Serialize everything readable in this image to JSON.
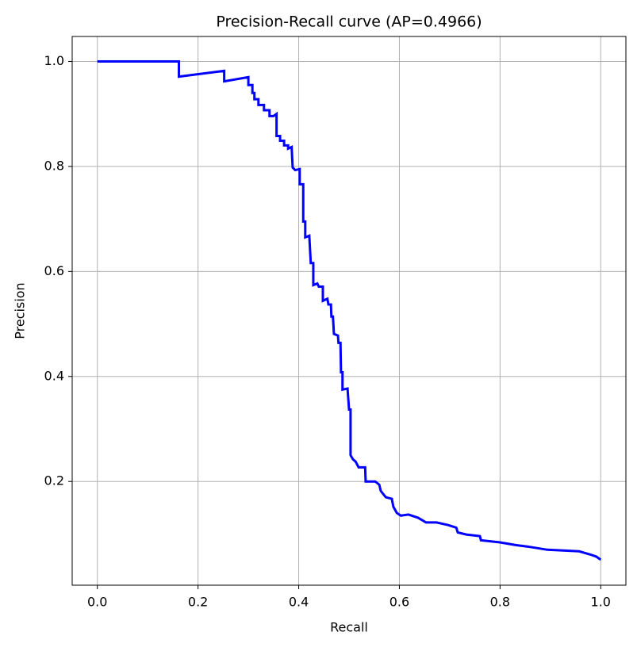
{
  "chart_data": {
    "type": "line",
    "title": "Precision-Recall curve (AP=0.4966)",
    "x_label": "Recall",
    "y_label": "Precision",
    "color": "#0000ff",
    "grid": true,
    "xlim": [
      -0.05,
      1.05
    ],
    "ylim": [
      0.0025,
      1.0475
    ],
    "xticks": [
      {
        "value": 0,
        "label": "0.0"
      },
      0.2,
      0.4,
      0.6,
      0.8,
      {
        "value": 1,
        "label": "1.0"
      }
    ],
    "yticks": [
      0.2,
      0.4,
      0.6,
      0.8,
      {
        "value": 1,
        "label": "1.0"
      }
    ],
    "x": [
      0,
      0.162,
      0.162,
      0.252,
      0.252,
      0.3,
      0.3,
      0.308,
      0.308,
      0.312,
      0.312,
      0.32,
      0.32,
      0.331,
      0.331,
      0.342,
      0.342,
      0.35,
      0.356,
      0.356,
      0.363,
      0.363,
      0.371,
      0.371,
      0.379,
      0.379,
      0.386,
      0.388,
      0.393,
      0.402,
      0.402,
      0.409,
      0.409,
      0.413,
      0.413,
      0.421,
      0.424,
      0.429,
      0.429,
      0.437,
      0.44,
      0.448,
      0.448,
      0.457,
      0.459,
      0.464,
      0.465,
      0.468,
      0.47,
      0.478,
      0.479,
      0.483,
      0.484,
      0.487,
      0.487,
      0.497,
      0.5,
      0.503,
      0.503,
      0.508,
      0.513,
      0.519,
      0.532,
      0.533,
      0.552,
      0.56,
      0.563,
      0.573,
      0.585,
      0.588,
      0.595,
      0.603,
      0.618,
      0.637,
      0.653,
      0.674,
      0.697,
      0.713,
      0.716,
      0.733,
      0.76,
      0.762,
      0.8,
      0.831,
      0.855,
      0.894,
      0.957,
      0.979,
      0.991,
      1.0
    ],
    "values": [
      1.0,
      1.0,
      0.971,
      0.982,
      0.962,
      0.97,
      0.955,
      0.955,
      0.94,
      0.94,
      0.928,
      0.928,
      0.917,
      0.917,
      0.907,
      0.907,
      0.896,
      0.896,
      0.9,
      0.858,
      0.858,
      0.849,
      0.849,
      0.84,
      0.84,
      0.834,
      0.837,
      0.798,
      0.793,
      0.795,
      0.766,
      0.766,
      0.695,
      0.695,
      0.665,
      0.668,
      0.616,
      0.616,
      0.574,
      0.577,
      0.571,
      0.571,
      0.544,
      0.548,
      0.537,
      0.537,
      0.514,
      0.514,
      0.481,
      0.478,
      0.464,
      0.464,
      0.408,
      0.408,
      0.375,
      0.377,
      0.337,
      0.337,
      0.25,
      0.242,
      0.238,
      0.227,
      0.227,
      0.2,
      0.2,
      0.194,
      0.182,
      0.17,
      0.167,
      0.152,
      0.14,
      0.135,
      0.137,
      0.131,
      0.122,
      0.122,
      0.117,
      0.112,
      0.103,
      0.099,
      0.096,
      0.088,
      0.084,
      0.079,
      0.076,
      0.07,
      0.067,
      0.061,
      0.057,
      0.051
    ]
  }
}
